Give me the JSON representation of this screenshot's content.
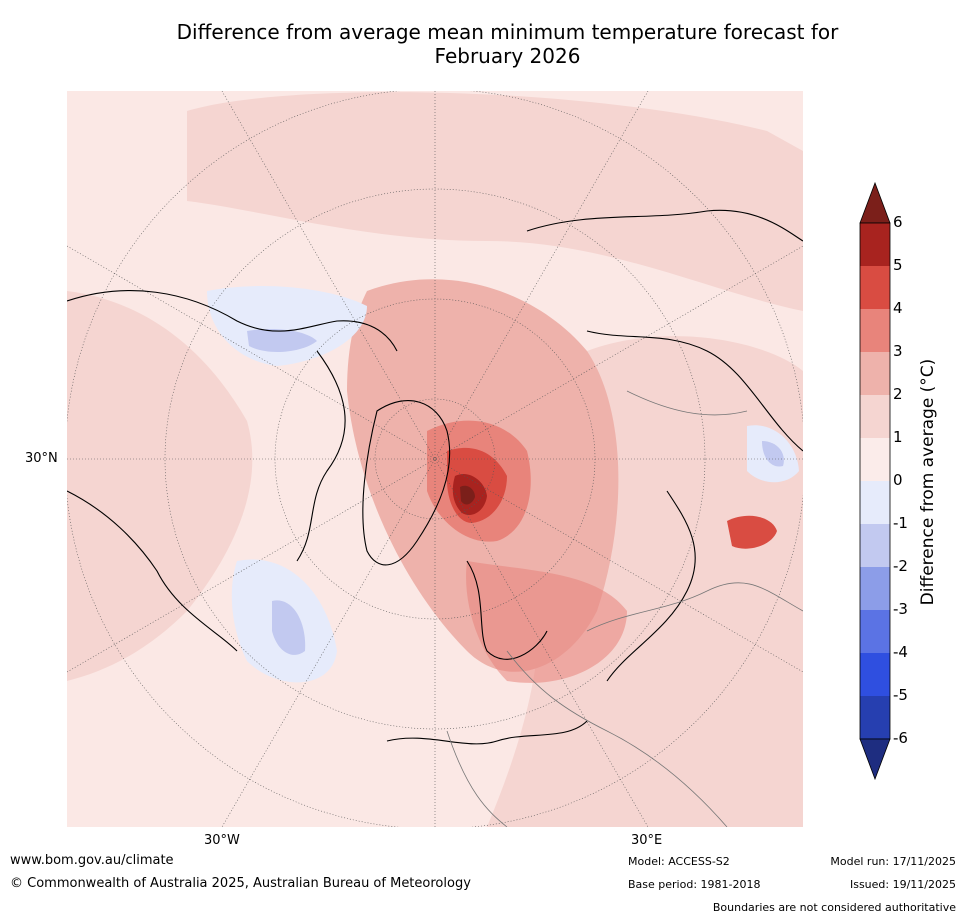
{
  "title_line1": "Difference from average mean minimum temperature forecast for",
  "title_line2": "February 2026",
  "map": {
    "lat_label": "30°N",
    "lon_labels": [
      "30°W",
      "30°E"
    ]
  },
  "colorbar": {
    "label": "Difference from average (°C)",
    "ticks": [
      "6",
      "5",
      "4",
      "3",
      "2",
      "1",
      "0",
      "-1",
      "-2",
      "-3",
      "-4",
      "-5",
      "-6"
    ],
    "colors": [
      "#7b1f1a",
      "#a8231f",
      "#d94c42",
      "#e8847b",
      "#eeb2ab",
      "#f5d5d1",
      "#fbecea",
      "#e6ebfb",
      "#c2c9f0",
      "#8c9de8",
      "#5b73e4",
      "#2f4fe0",
      "#263fb0",
      "#1e2d80"
    ]
  },
  "footer": {
    "website": "www.bom.gov.au/climate",
    "copyright": "© Commonwealth of Australia 2025, Australian Bureau of Meteorology",
    "model": "Model: ACCESS-S2",
    "base_period": "Base period: 1981-2018",
    "model_run": "Model run: 17/11/2025",
    "issued": "Issued: 19/11/2025",
    "disclaimer": "Boundaries are not considered authoritative"
  }
}
